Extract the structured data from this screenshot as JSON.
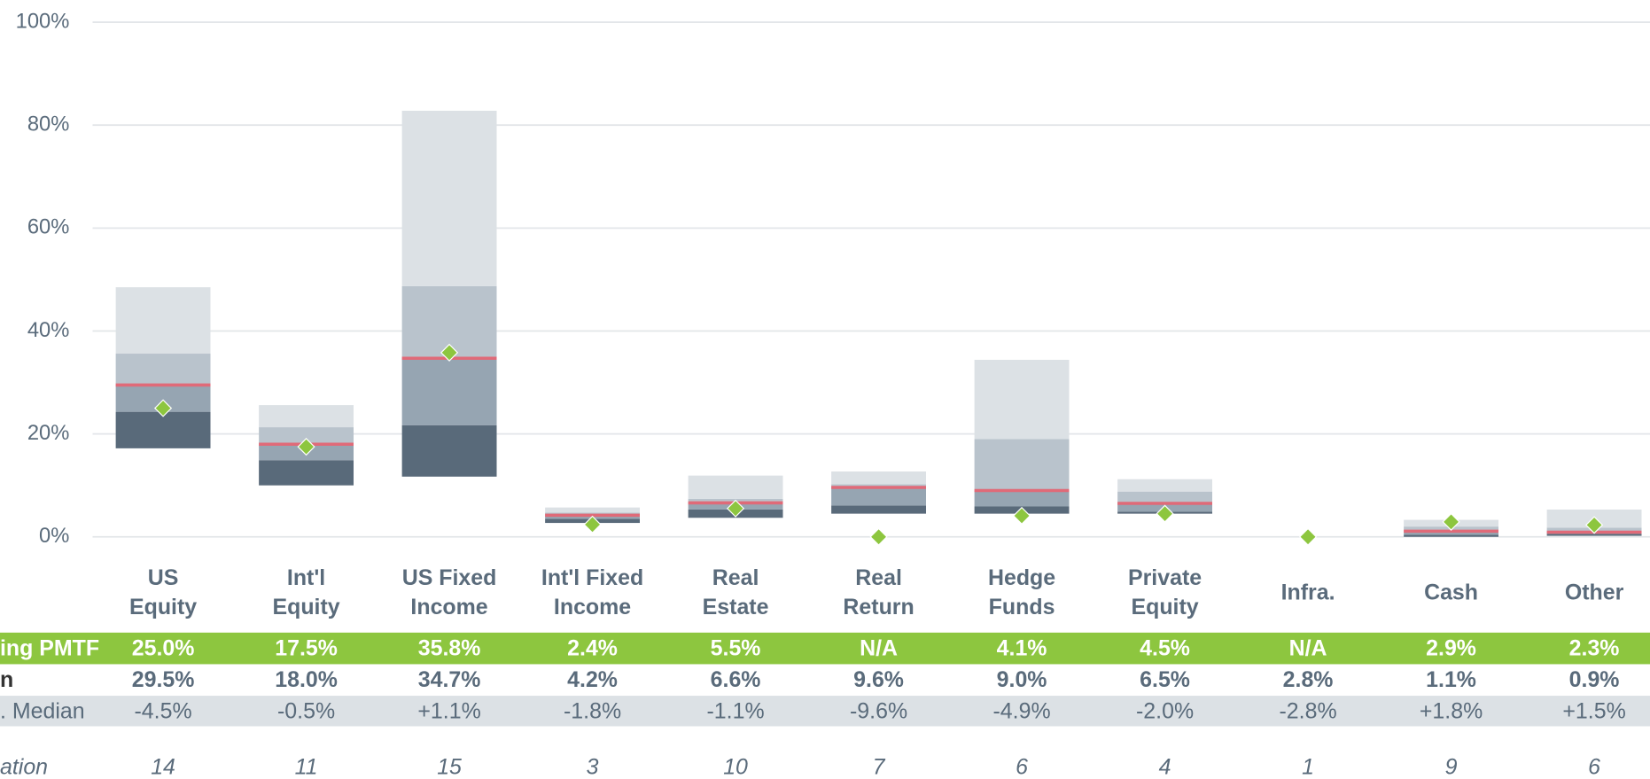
{
  "chart_data": {
    "type": "floating_box",
    "categories": [
      [
        "US",
        "Equity"
      ],
      [
        "Int'l",
        "Equity"
      ],
      [
        "US Fixed",
        "Income"
      ],
      [
        "Int'l Fixed",
        "Income"
      ],
      [
        "Real",
        "Estate"
      ],
      [
        "Real",
        "Return"
      ],
      [
        "Hedge",
        "Funds"
      ],
      [
        "Private",
        "Equity"
      ],
      [
        "Infra."
      ],
      [
        "Cash"
      ],
      [
        "Other"
      ]
    ],
    "ylim": [
      0,
      100
    ],
    "yticks": [
      {
        "value": 0,
        "label": "0%"
      },
      {
        "value": 20,
        "label": "20%"
      },
      {
        "value": 40,
        "label": "40%"
      },
      {
        "value": 60,
        "label": "60%"
      },
      {
        "value": 80,
        "label": "80%"
      },
      {
        "value": 100,
        "label": "100%"
      }
    ],
    "grid": true,
    "p5": [
      17.2,
      10.0,
      11.7,
      2.7,
      3.7,
      4.5,
      4.5,
      4.5,
      null,
      0,
      0.2
    ],
    "p25": [
      24.3,
      14.9,
      21.7,
      3.5,
      5.3,
      6.1,
      5.9,
      4.9,
      null,
      0.4,
      0.6
    ],
    "p75": [
      35.6,
      21.3,
      48.7,
      4.7,
      7.4,
      10.2,
      19.0,
      8.8,
      null,
      2.0,
      1.8
    ],
    "p95": [
      48.5,
      25.6,
      82.8,
      5.7,
      11.9,
      12.7,
      34.4,
      11.2,
      null,
      3.3,
      5.3
    ],
    "median": {
      "values": [
        29.5,
        18.0,
        34.7,
        4.2,
        6.6,
        9.6,
        9.0,
        6.5,
        2.8,
        1.1,
        0.9
      ],
      "value_labels": [
        "29.5%",
        "18.0%",
        "34.7%",
        "4.2%",
        "6.6%",
        "9.6%",
        "9.0%",
        "6.5%",
        "2.8%",
        "1.1%",
        "0.9%"
      ],
      "color": "#e06a78"
    },
    "pmtf": {
      "values": [
        25.0,
        17.5,
        35.8,
        2.4,
        5.5,
        null,
        4.1,
        4.5,
        null,
        2.9,
        2.3
      ],
      "value_labels": [
        "25.0%",
        "17.5%",
        "35.8%",
        "2.4%",
        "5.5%",
        "N/A",
        "4.1%",
        "4.5%",
        "N/A",
        "2.9%",
        "2.3%"
      ],
      "color": "#8dc63f"
    },
    "colors": [
      "#596a7a",
      "#96a5b2",
      "#b9c3cc",
      "#dce1e5"
    ]
  },
  "table": {
    "row_labels": [
      "ing PMTF",
      "n",
      ". Median",
      "ation"
    ],
    "diff": [
      "-4.5%",
      "-0.5%",
      "+1.1%",
      "-1.8%",
      "-1.1%",
      "-9.6%",
      "-4.9%",
      "-2.0%",
      "-2.8%",
      "+1.8%",
      "+1.5%"
    ],
    "count": [
      14,
      11,
      15,
      3,
      10,
      7,
      6,
      4,
      1,
      9,
      6
    ]
  }
}
